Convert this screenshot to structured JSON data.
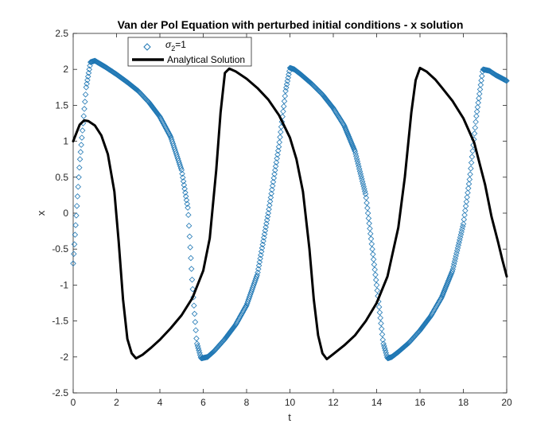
{
  "chart_data": {
    "type": "line",
    "title": "Van der Pol Equation with perturbed initial conditions - x solution",
    "xlabel": "t",
    "ylabel": "x",
    "xlim": [
      0,
      20
    ],
    "ylim": [
      -2.5,
      2.5
    ],
    "xticks": [
      "0",
      "2",
      "4",
      "6",
      "8",
      "10",
      "12",
      "14",
      "16",
      "18",
      "20"
    ],
    "yticks": [
      "-2.5",
      "-2",
      "-1.5",
      "-1",
      "-0.5",
      "0",
      "0.5",
      "1",
      "1.5",
      "2",
      "2.5"
    ],
    "grid": false,
    "legend_position": "top-left",
    "series": [
      {
        "name_prefix": "σ",
        "name_subscript": "2",
        "name_suffix": "=1",
        "marker": "diamond",
        "color": "#1f77b4",
        "x": [
          0,
          0.3,
          0.6,
          0.8,
          1.0,
          1.5,
          2.0,
          2.5,
          3.0,
          3.5,
          4.0,
          4.5,
          5.0,
          5.3,
          5.5,
          5.7,
          5.9,
          6.2,
          6.5,
          7.0,
          7.5,
          8.0,
          8.5,
          9.0,
          9.5,
          9.8,
          10.0,
          10.2,
          10.5,
          11.0,
          11.5,
          12.0,
          12.5,
          13.0,
          13.5,
          14.0,
          14.3,
          14.5,
          14.7,
          15.0,
          15.5,
          16.0,
          16.5,
          17.0,
          17.5,
          18.0,
          18.3,
          18.6,
          18.9,
          19.2,
          19.5,
          20.0
        ],
        "y": [
          -0.7,
          0.7,
          1.75,
          2.1,
          2.12,
          2.03,
          1.93,
          1.82,
          1.7,
          1.54,
          1.34,
          1.06,
          0.6,
          0.05,
          -1.0,
          -1.8,
          -2.02,
          -2.0,
          -1.92,
          -1.75,
          -1.55,
          -1.28,
          -0.85,
          0.0,
          0.95,
          1.7,
          2.02,
          2.0,
          1.93,
          1.8,
          1.65,
          1.46,
          1.22,
          0.86,
          0.25,
          -1.0,
          -1.8,
          -2.02,
          -2.0,
          -1.93,
          -1.8,
          -1.63,
          -1.43,
          -1.17,
          -0.8,
          -0.15,
          0.5,
          1.35,
          2.0,
          1.98,
          1.92,
          1.84
        ]
      },
      {
        "name": "Analytical Solution",
        "color": "#000000",
        "x": [
          0,
          0.3,
          0.5,
          0.7,
          1.0,
          1.3,
          1.6,
          1.9,
          2.1,
          2.3,
          2.5,
          2.7,
          2.9,
          3.2,
          3.6,
          4.0,
          4.5,
          5.0,
          5.5,
          6.0,
          6.3,
          6.6,
          6.8,
          7.0,
          7.2,
          7.5,
          8.0,
          8.5,
          9.0,
          9.5,
          10.0,
          10.3,
          10.6,
          10.9,
          11.1,
          11.3,
          11.5,
          11.7,
          12.0,
          12.5,
          13.0,
          13.5,
          14.0,
          14.5,
          15.0,
          15.3,
          15.6,
          15.8,
          16.0,
          16.3,
          16.7,
          17.0,
          17.5,
          18.0,
          18.5,
          19.0,
          19.3,
          19.6,
          19.8,
          20.0
        ],
        "y": [
          1.0,
          1.23,
          1.29,
          1.28,
          1.22,
          1.08,
          0.82,
          0.3,
          -0.4,
          -1.2,
          -1.75,
          -1.95,
          -2.02,
          -1.97,
          -1.87,
          -1.76,
          -1.6,
          -1.42,
          -1.18,
          -0.8,
          -0.35,
          0.6,
          1.4,
          1.95,
          2.01,
          1.97,
          1.87,
          1.74,
          1.58,
          1.36,
          1.05,
          0.75,
          0.3,
          -0.5,
          -1.2,
          -1.7,
          -1.95,
          -2.03,
          -1.96,
          -1.84,
          -1.7,
          -1.5,
          -1.25,
          -0.88,
          -0.2,
          0.5,
          1.4,
          1.85,
          2.02,
          1.97,
          1.86,
          1.75,
          1.56,
          1.32,
          0.98,
          0.4,
          -0.05,
          -0.4,
          -0.65,
          -0.88
        ]
      }
    ]
  }
}
